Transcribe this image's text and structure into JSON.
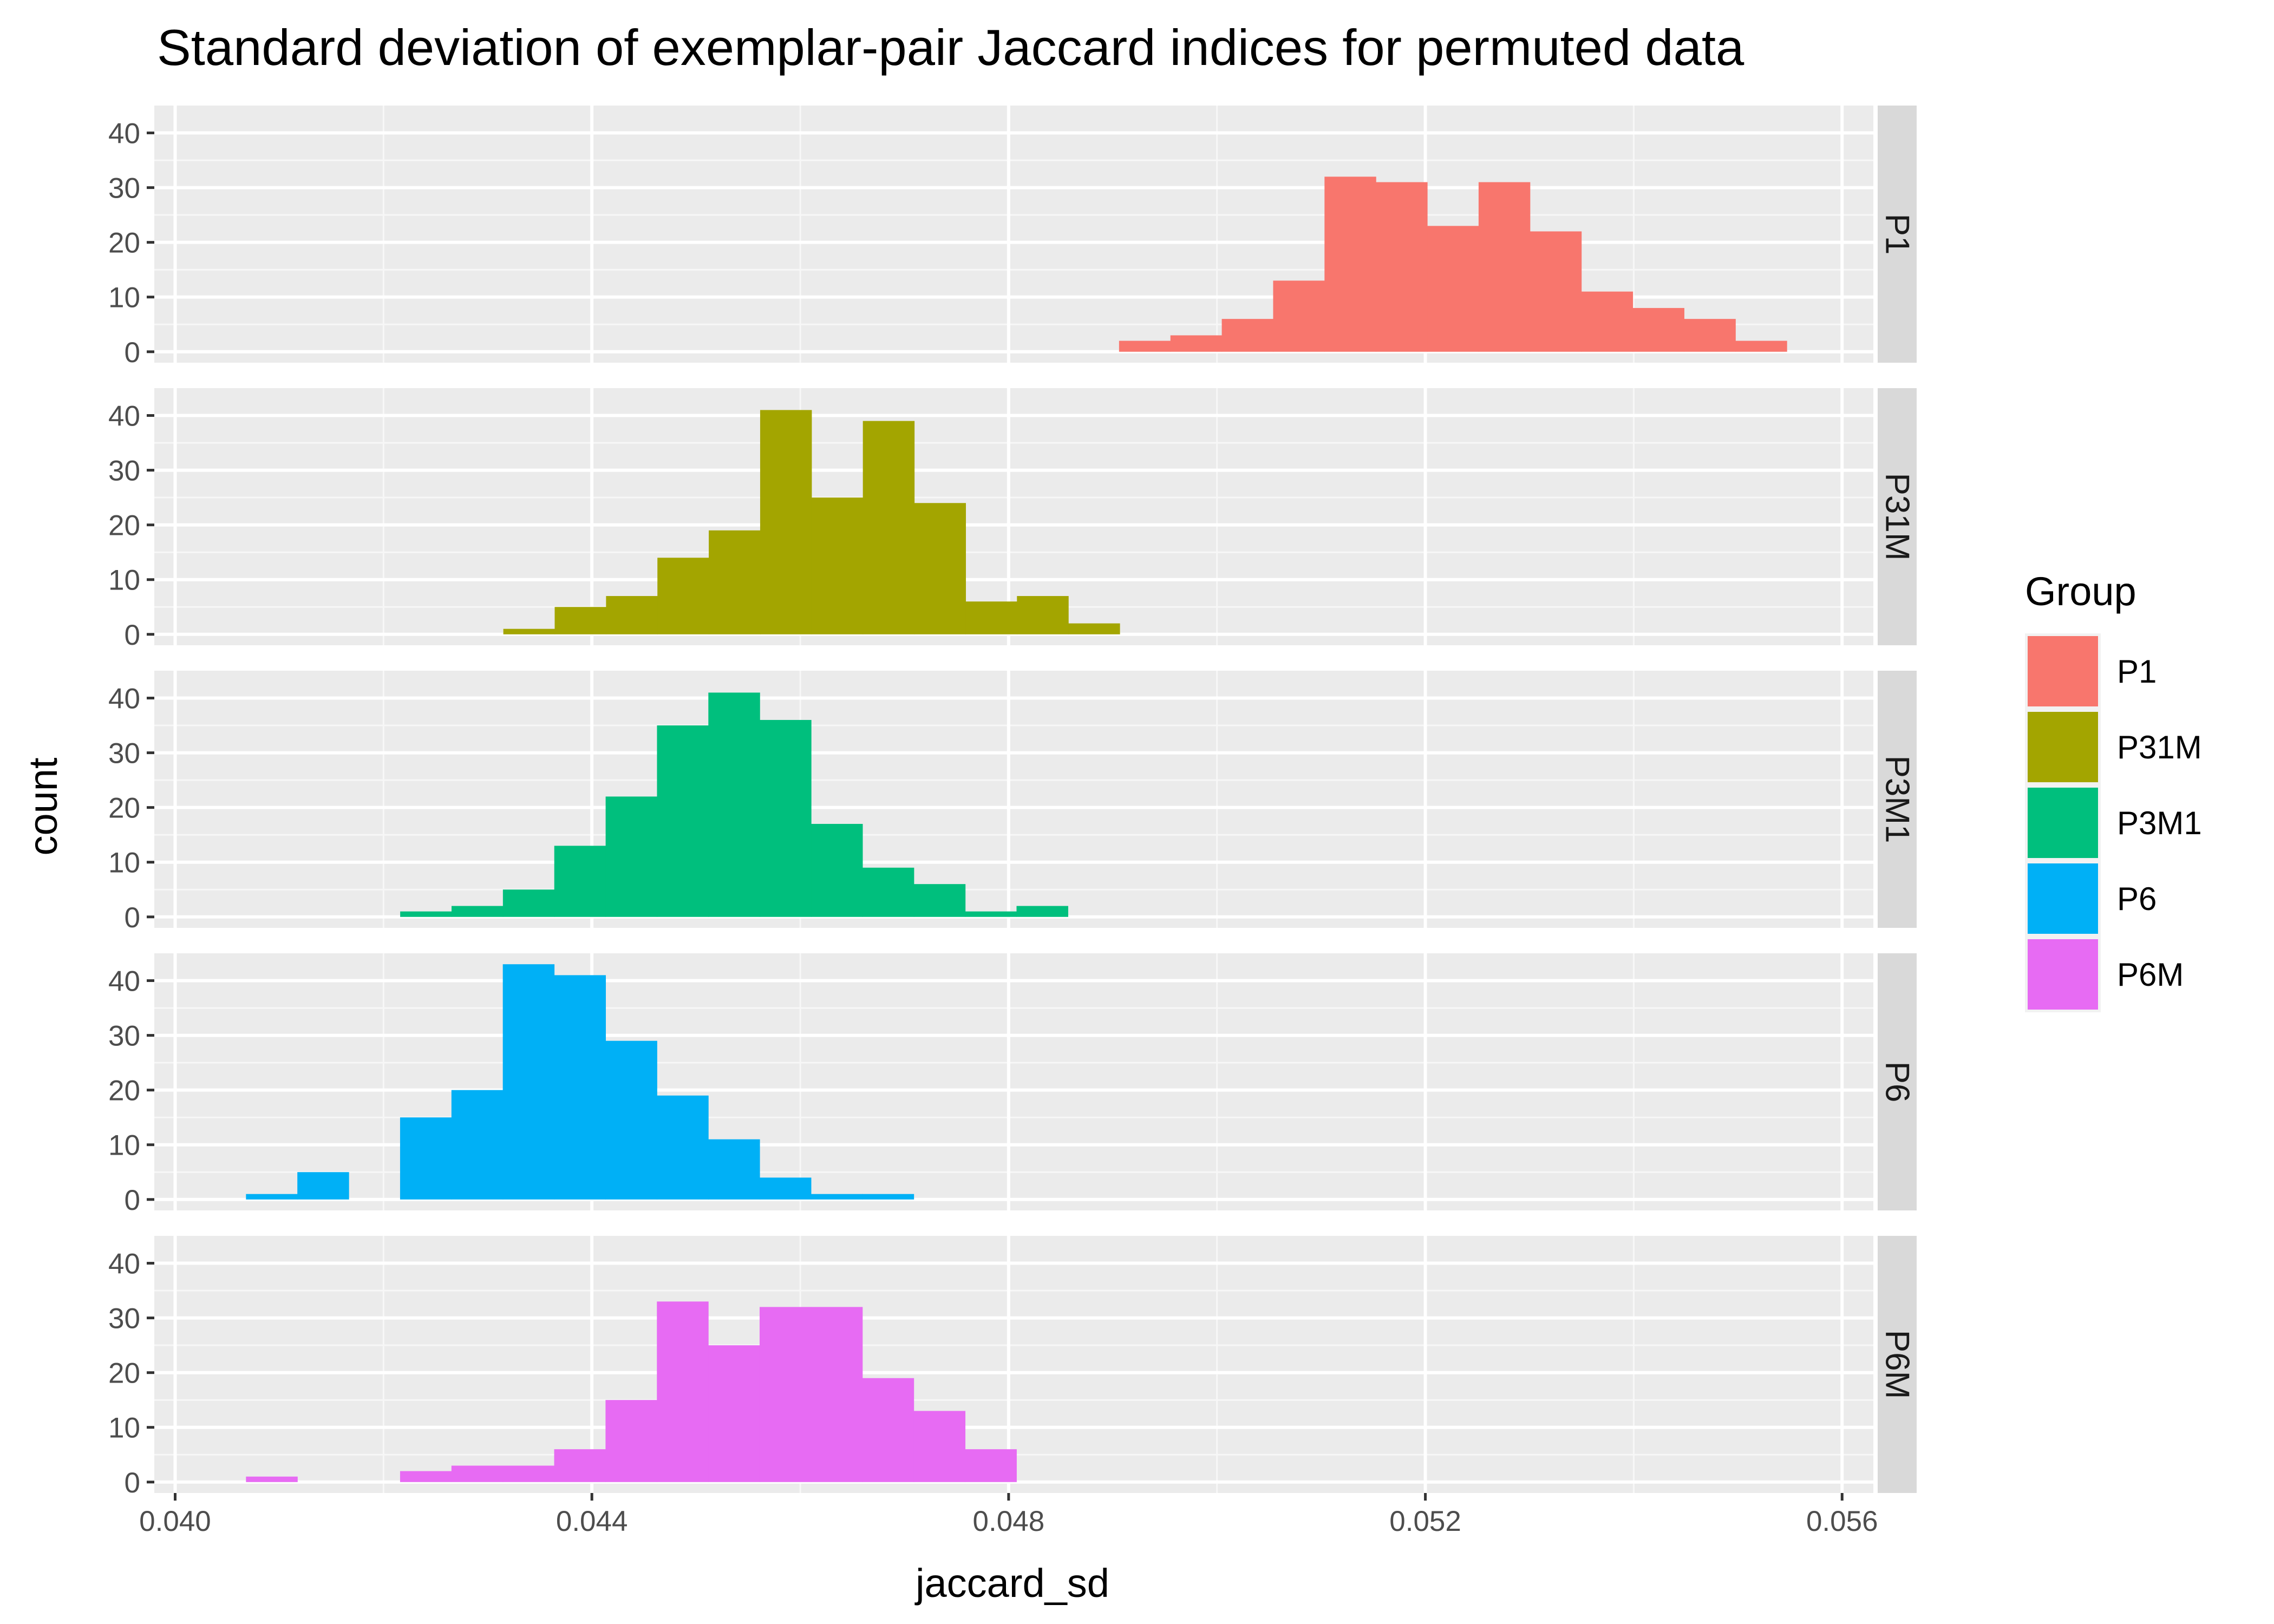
{
  "chart_data": {
    "type": "bar",
    "title": "Standard deviation of exemplar-pair Jaccard indices for permuted data",
    "xlabel": "jaccard_sd",
    "ylabel": "count",
    "xlim": [
      0.0398,
      0.0563
    ],
    "ylim": [
      -2,
      45
    ],
    "x_ticks": [
      0.04,
      0.044,
      0.048,
      0.052,
      0.056
    ],
    "x_tick_labels": [
      "0.040",
      "0.044",
      "0.048",
      "0.052",
      "0.056"
    ],
    "y_ticks": [
      0,
      10,
      20,
      30,
      40
    ],
    "y_tick_labels": [
      "0",
      "10",
      "20",
      "30",
      "40"
    ],
    "bin_width": 0.000493,
    "grid": true,
    "legend": {
      "title": "Group",
      "position": "right",
      "entries": [
        "P1",
        "P31M",
        "P3M1",
        "P6",
        "P6M"
      ]
    },
    "series": [
      {
        "name": "P1",
        "color": "#F8766D",
        "bin_start": 0.04906,
        "counts": [
          2,
          3,
          6,
          13,
          32,
          31,
          23,
          31,
          22,
          11,
          8,
          6,
          2
        ]
      },
      {
        "name": "P31M",
        "color": "#A3A500",
        "bin_start": 0.04315,
        "counts": [
          1,
          5,
          7,
          14,
          19,
          41,
          25,
          39,
          24,
          6,
          7,
          2
        ]
      },
      {
        "name": "P3M1",
        "color": "#00BF7D",
        "bin_start": 0.04216,
        "counts": [
          1,
          2,
          5,
          13,
          22,
          35,
          41,
          36,
          17,
          9,
          6,
          1,
          2
        ]
      },
      {
        "name": "P6",
        "color": "#00B0F6",
        "bin_start": 0.04068,
        "counts": [
          1,
          5,
          0,
          15,
          20,
          43,
          41,
          29,
          19,
          11,
          4,
          1,
          1
        ]
      },
      {
        "name": "P6M",
        "color": "#E76BF3",
        "bin_start": 0.04068,
        "counts": [
          1,
          0,
          0,
          2,
          3,
          3,
          6,
          15,
          33,
          25,
          32,
          32,
          19,
          13,
          6
        ]
      }
    ]
  }
}
